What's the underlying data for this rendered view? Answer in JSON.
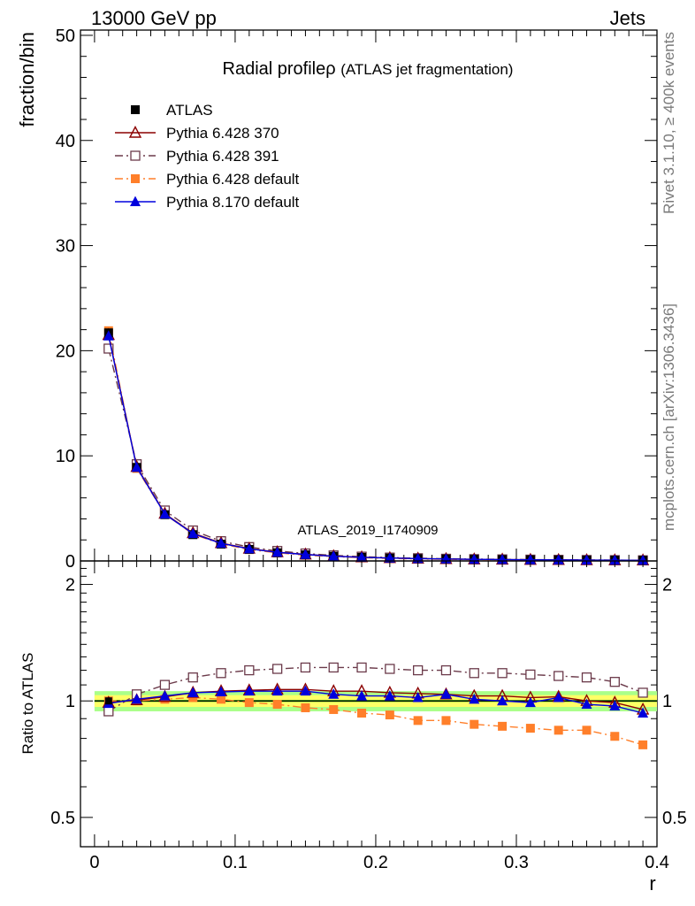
{
  "header": {
    "left": "13000 GeV pp",
    "right": "Jets"
  },
  "side_text": {
    "rivet": "Rivet 3.1.10, ≥ 400k events",
    "mcplots": "mcplots.cern.ch [arXiv:1306.3436]"
  },
  "watermark": "ATLAS_2019_I1740909",
  "colors": {
    "ATLAS": "#000000",
    "Pythia 6.428 370": "#8b0000",
    "Pythia 6.428 391": "#6b3a4a",
    "Pythia 6.428 default": "#ff7f2a",
    "Pythia 8.170 default": "#0000dd",
    "band_inner": "#ffff66",
    "band_outer": "#aaff88",
    "ratio_ref": "#00aa00"
  },
  "chart_data": {
    "type": "line",
    "title": "Radial profileρ (ATLAS jet fragmentation)",
    "xlabel": "r",
    "ylabel": "fraction/bin",
    "ratio_ylabel": "Ratio to ATLAS",
    "xlim": [
      -0.01,
      0.4
    ],
    "ylim": [
      0,
      50.5
    ],
    "xticks": [
      "0",
      "0.1",
      "0.2",
      "0.3",
      "0.4"
    ],
    "yticks": [
      "0",
      "10",
      "20",
      "30",
      "40",
      "50"
    ],
    "ratio_yticks": [
      "0.5",
      "1",
      "2"
    ],
    "ratio_ylim": [
      0.42,
      2.3
    ],
    "ratio_scale": "log",
    "legend_position": "top-left",
    "x": [
      0.01,
      0.03,
      0.05,
      0.07,
      0.09,
      0.11,
      0.13,
      0.15,
      0.17,
      0.19,
      0.21,
      0.23,
      0.25,
      0.27,
      0.29,
      0.31,
      0.33,
      0.35,
      0.37,
      0.39
    ],
    "series": [
      {
        "name": "ATLAS",
        "marker": "square-filled",
        "dash": "none",
        "values": [
          21.7,
          8.9,
          4.4,
          2.5,
          1.6,
          1.1,
          0.78,
          0.58,
          0.44,
          0.34,
          0.27,
          0.22,
          0.18,
          0.15,
          0.13,
          0.11,
          0.095,
          0.08,
          0.07,
          0.06
        ]
      },
      {
        "name": "Pythia 6.428 370",
        "marker": "triangle-open",
        "dash": "none",
        "values": [
          21.5,
          8.95,
          4.5,
          2.65,
          1.7,
          1.17,
          0.84,
          0.62,
          0.46,
          0.355,
          0.28,
          0.227,
          0.187,
          0.153,
          0.134,
          0.112,
          0.097,
          0.08,
          0.069,
          0.057
        ]
      },
      {
        "name": "Pythia 6.428 391",
        "marker": "square-open",
        "dash": "dashdot",
        "values": [
          20.2,
          9.2,
          4.8,
          2.9,
          1.88,
          1.32,
          0.95,
          0.71,
          0.53,
          0.41,
          0.32,
          0.26,
          0.21,
          0.175,
          0.152,
          0.127,
          0.109,
          0.092,
          0.079,
          0.064
        ]
      },
      {
        "name": "Pythia 6.428 default",
        "marker": "square-filled",
        "dash": "dashdot",
        "values": [
          21.9,
          8.8,
          4.45,
          2.55,
          1.62,
          1.08,
          0.77,
          0.55,
          0.41,
          0.31,
          0.24,
          0.19,
          0.155,
          0.125,
          0.107,
          0.088,
          0.075,
          0.063,
          0.053,
          0.044
        ]
      },
      {
        "name": "Pythia 8.170 default",
        "marker": "triangle-filled",
        "dash": "none",
        "values": [
          21.4,
          8.9,
          4.45,
          2.6,
          1.67,
          1.15,
          0.82,
          0.61,
          0.45,
          0.345,
          0.275,
          0.222,
          0.186,
          0.151,
          0.13,
          0.107,
          0.096,
          0.078,
          0.066,
          0.055
        ]
      }
    ],
    "ratio_series": [
      {
        "name": "Pythia 6.428 370",
        "values": [
          0.99,
          1.005,
          1.025,
          1.05,
          1.06,
          1.065,
          1.07,
          1.07,
          1.06,
          1.06,
          1.05,
          1.045,
          1.04,
          1.03,
          1.03,
          1.02,
          1.025,
          1.0,
          0.99,
          0.95
        ]
      },
      {
        "name": "Pythia 6.428 391",
        "values": [
          0.94,
          1.04,
          1.1,
          1.15,
          1.18,
          1.2,
          1.21,
          1.22,
          1.22,
          1.22,
          1.21,
          1.2,
          1.2,
          1.18,
          1.18,
          1.17,
          1.16,
          1.15,
          1.12,
          1.05
        ]
      },
      {
        "name": "Pythia 6.428 default",
        "values": [
          1.0,
          1.0,
          1.01,
          1.02,
          1.01,
          0.99,
          0.98,
          0.96,
          0.95,
          0.93,
          0.92,
          0.89,
          0.89,
          0.87,
          0.86,
          0.85,
          0.84,
          0.84,
          0.81,
          0.77
        ]
      },
      {
        "name": "Pythia 8.170 default",
        "values": [
          0.985,
          1.01,
          1.03,
          1.05,
          1.055,
          1.06,
          1.06,
          1.06,
          1.04,
          1.03,
          1.03,
          1.02,
          1.04,
          1.01,
          1.0,
          0.99,
          1.02,
          0.98,
          0.97,
          0.93
        ]
      }
    ]
  }
}
